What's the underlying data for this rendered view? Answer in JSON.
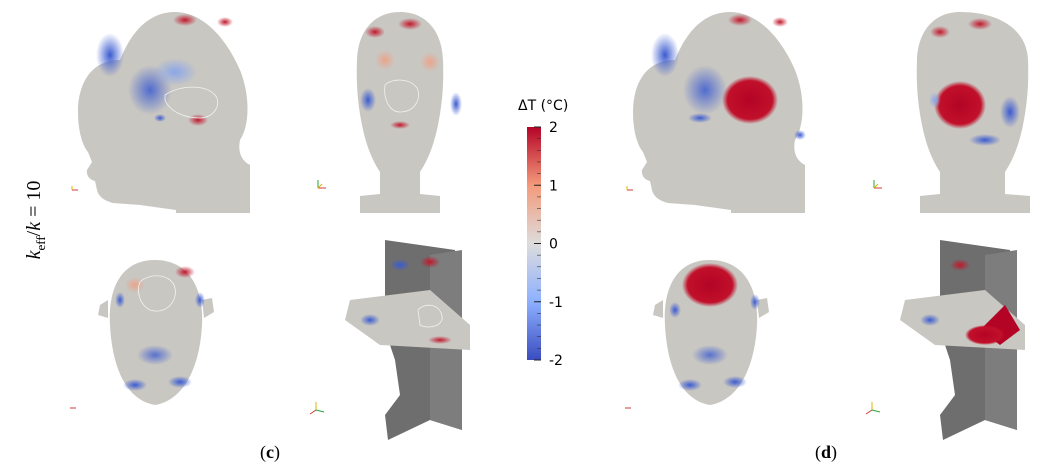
{
  "row_label": {
    "k_main": "k",
    "k_sub": "eff",
    "slash": "/",
    "k_rhs": "k",
    "equals": " = 10"
  },
  "colorbar": {
    "title": "ΔT (°C)",
    "tick_labels": [
      "2",
      "1",
      "0",
      "-1",
      "-2"
    ],
    "tick_values": [
      2,
      1,
      0,
      -1,
      -2
    ],
    "range": [
      -2,
      2
    ],
    "colormap": [
      "#3b4cc0",
      "#8db0fe",
      "#dddcdc",
      "#f49a7b",
      "#b40426"
    ]
  },
  "panels": [
    {
      "label": "(c)",
      "letter": "c"
    },
    {
      "label": "(d)",
      "letter": "d"
    }
  ]
}
